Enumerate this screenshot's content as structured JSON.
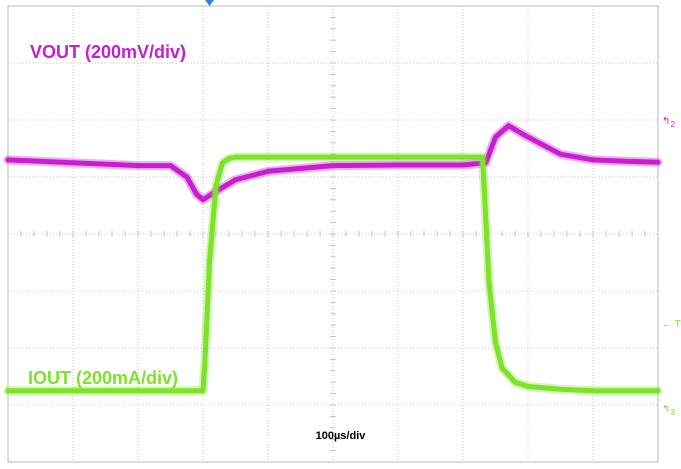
{
  "colors": {
    "vout": "#c81ed0",
    "iout": "#7ee12a",
    "grid": "#b9b9b9",
    "trigger_marker": "#3a7fd0"
  },
  "labels": {
    "vout": "VOUT (200mV/div)",
    "iout": "IOUT (200mA/div)",
    "timebase": "100µs/div"
  },
  "markers": {
    "ch2": "2",
    "trigger": "T",
    "ch3": "3"
  },
  "chart_data": {
    "type": "line",
    "title": "",
    "xlabel": "100µs/div",
    "ylabel": "",
    "grid": true,
    "x_divisions": 10,
    "y_divisions": 8,
    "x_unit": "µs",
    "xlim": [
      0,
      1000
    ],
    "series": [
      {
        "name": "VOUT (200mV/div)",
        "unit": "mV",
        "color": "#c81ed0",
        "ylim": [
          -1060,
          540
        ],
        "x": [
          0,
          100,
          200,
          250,
          275,
          290,
          300,
          320,
          350,
          400,
          500,
          600,
          700,
          735,
          750,
          770,
          800,
          850,
          900,
          950,
          1000
        ],
        "values": [
          0,
          -10,
          -20,
          -20,
          -60,
          -120,
          -140,
          -110,
          -70,
          -40,
          -20,
          -18,
          -18,
          -10,
          80,
          120,
          80,
          20,
          0,
          -5,
          -8
        ]
      },
      {
        "name": "IOUT (200mA/div)",
        "unit": "mA",
        "color": "#7ee12a",
        "ylim": [
          -250,
          1350
        ],
        "x": [
          0,
          100,
          200,
          300,
          303,
          310,
          320,
          330,
          340,
          350,
          400,
          500,
          600,
          700,
          730,
          733,
          740,
          750,
          760,
          780,
          800,
          850,
          900,
          1000
        ],
        "values": [
          0,
          0,
          0,
          0,
          100,
          450,
          720,
          800,
          815,
          820,
          820,
          820,
          820,
          820,
          820,
          700,
          380,
          170,
          80,
          30,
          15,
          5,
          0,
          0
        ]
      }
    ]
  }
}
